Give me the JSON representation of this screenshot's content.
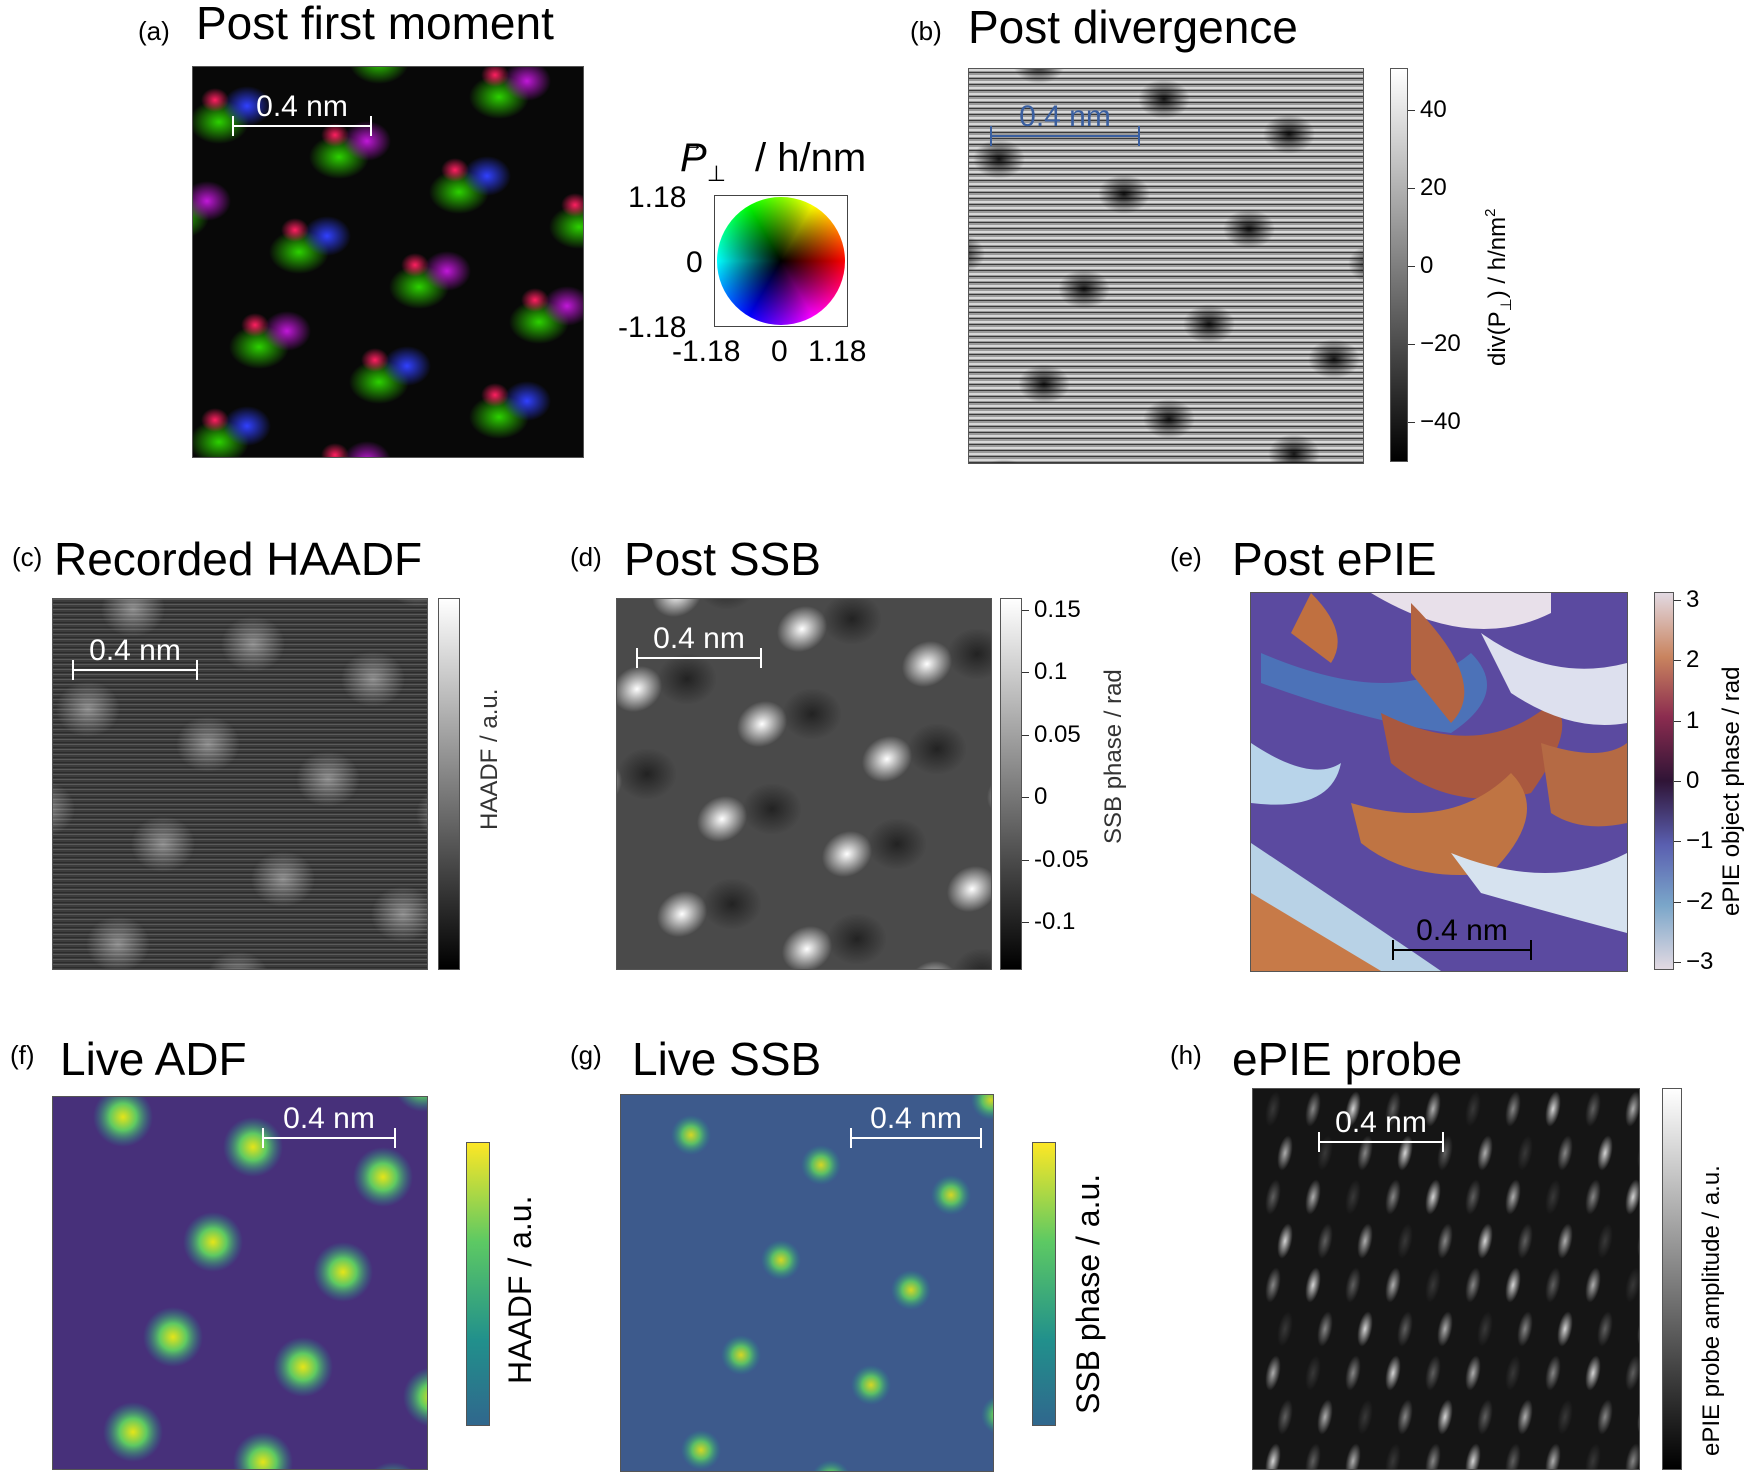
{
  "panels": {
    "a": {
      "letter": "(a)",
      "title": "Post first moment",
      "scalebar": "0.4 nm",
      "legend_symbol": "P",
      "legend_subscript": "⊥",
      "legend_unit": "/ h/nm",
      "y_ticks": [
        "1.18",
        "0",
        "-1.18"
      ],
      "x_ticks": [
        "-1.18",
        "0",
        "1.18"
      ]
    },
    "b": {
      "letter": "(b)",
      "title": "Post divergence",
      "scalebar": "0.4 nm",
      "cbar_ticks": [
        "40",
        "20",
        "0",
        "−20",
        "−40"
      ],
      "cbar_label_main": "div(P",
      "cbar_label_sub": "⊥",
      "cbar_label_tail": ") / h/nm",
      "cbar_label_sup": "2"
    },
    "c": {
      "letter": "(c)",
      "title": "Recorded HAADF",
      "scalebar": "0.4 nm",
      "cbar_label": "HAADF / a.u."
    },
    "d": {
      "letter": "(d)",
      "title": "Post SSB",
      "scalebar": "0.4 nm",
      "cbar_ticks": [
        "0.15",
        "0.1",
        "0.05",
        "0",
        "-0.05",
        "-0.1"
      ],
      "cbar_label": "SSB phase / rad"
    },
    "e": {
      "letter": "(e)",
      "title": "Post ePIE",
      "scalebar": "0.4 nm",
      "cbar_ticks": [
        "3",
        "2",
        "1",
        "0",
        "−1",
        "−2",
        "−3"
      ],
      "cbar_label": "ePIE object phase / rad"
    },
    "f": {
      "letter": "(f)",
      "title": "Live ADF",
      "scalebar": "0.4 nm",
      "cbar_label": "HAADF / a.u."
    },
    "g": {
      "letter": "(g)",
      "title": "Live SSB",
      "scalebar": "0.4 nm",
      "cbar_label": "SSB phase / a.u."
    },
    "h": {
      "letter": "(h)",
      "title": "ePIE probe",
      "scalebar": "0.4 nm",
      "cbar_label": "ePIE probe amplitude / a.u."
    }
  },
  "colors": {
    "viridis_low": "#3b528b",
    "viridis_mid": "#21908c",
    "viridis_high": "#fde725",
    "twilight_high": "#e2d9e2",
    "twilight_mid": "#2f1436",
    "twilight_orange": "#c06a3a",
    "twilight_blue": "#5a8ec4"
  }
}
